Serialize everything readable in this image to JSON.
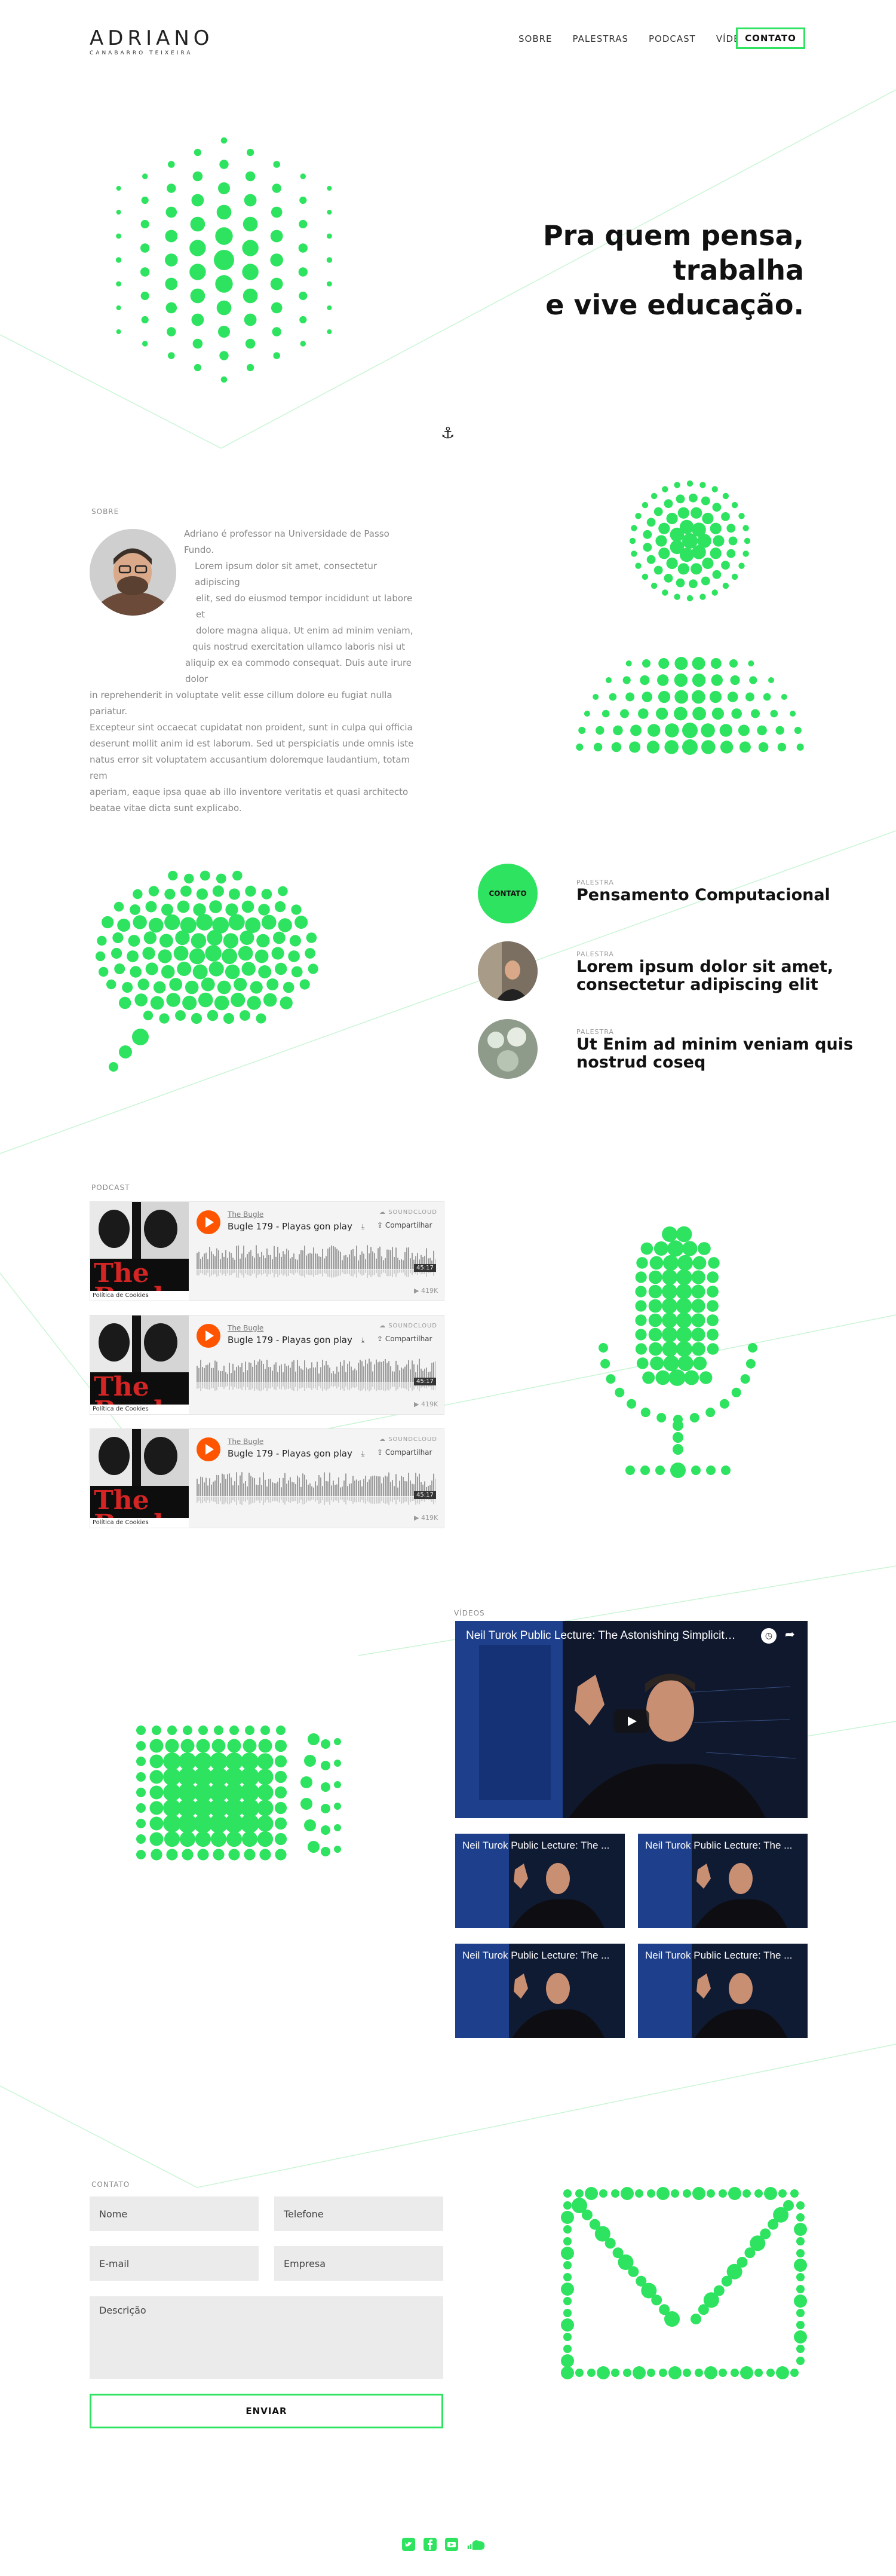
{
  "header": {
    "logo_name": "ADRIANO",
    "logo_sub": "CANABARRO TEIXEIRA",
    "nav": [
      "SOBRE",
      "PALESTRAS",
      "PODCAST",
      "VÍDEOS"
    ],
    "cta": "CONTATO"
  },
  "hero": {
    "title_line1": "Pra quem pensa, trabalha",
    "title_line2": "e vive educação."
  },
  "about": {
    "label": "SOBRE",
    "lines": [
      "Adriano é professor na Universidade de Passo Fundo.",
      "Lorem ipsum dolor sit amet, consectetur adipiscing",
      "elit, sed do eiusmod tempor incididunt ut labore et",
      "dolore magna aliqua. Ut enim ad minim veniam,",
      "quis nostrud exercitation ullamco laboris nisi ut",
      "aliquip ex ea commodo consequat. Duis aute irure dolor",
      "in reprehenderit in voluptate velit esse cillum dolore eu fugiat nulla pariatur.",
      "Excepteur sint occaecat cupidatat non proident, sunt in culpa qui officia",
      "deserunt mollit anim id est laborum. Sed ut perspiciatis unde omnis iste",
      "natus error sit voluptatem accusantium doloremque laudantium, totam rem",
      "aperiam, eaque ipsa quae ab illo inventore veritatis et quasi architecto",
      "beatae vitae dicta sunt explicabo."
    ]
  },
  "talks": {
    "cta": "CONTATO",
    "items": [
      {
        "tag": "PALESTRA",
        "title": "Pensamento Computacional"
      },
      {
        "tag": "PALESTRA",
        "title": "Lorem ipsum dolor sit amet,\nconsectetur adipiscing elit"
      },
      {
        "tag": "PALESTRA",
        "title": "Ut Enim ad minim veniam quis\nnostrud coseq"
      }
    ]
  },
  "podcast": {
    "label": "PODCAST",
    "episodes": [
      {
        "show": "The Bugle",
        "title": "Bugle 179 - Playas gon play",
        "brand": "SOUNDCLOUD",
        "share": "Compartilhar",
        "duration": "45:17",
        "plays": "419K",
        "cookie": "Política de Cookies",
        "art": "The Bugle"
      },
      {
        "show": "The Bugle",
        "title": "Bugle 179 - Playas gon play",
        "brand": "SOUNDCLOUD",
        "share": "Compartilhar",
        "duration": "45:17",
        "plays": "419K",
        "cookie": "Política de Cookies",
        "art": "The Bugle"
      },
      {
        "show": "The Bugle",
        "title": "Bugle 179 - Playas gon play",
        "brand": "SOUNDCLOUD",
        "share": "Compartilhar",
        "duration": "45:17",
        "plays": "419K",
        "cookie": "Política de Cookies",
        "art": "The Bugle"
      }
    ]
  },
  "videos": {
    "label": "VÍDEOS",
    "main_title": "Neil Turok Public Lecture: The Astonishing Simplicity of Ever...",
    "thumbs": [
      "Neil Turok Public Lecture: The ...",
      "Neil Turok Public Lecture: The ...",
      "Neil Turok Public Lecture: The ...",
      "Neil Turok Public Lecture: The ..."
    ]
  },
  "contact": {
    "label": "CONTATO",
    "fields": {
      "name": "Nome",
      "phone": "Telefone",
      "email": "E-mail",
      "company": "Empresa",
      "description": "Descrição"
    },
    "submit": "ENVIAR"
  },
  "footer": {
    "icons": [
      "twitter-icon",
      "facebook-icon",
      "youtube-icon",
      "soundcloud-icon"
    ]
  },
  "colors": {
    "accent": "#2ee35f",
    "line": "#c9f5d5",
    "text": "#111111",
    "muted": "#888888"
  }
}
